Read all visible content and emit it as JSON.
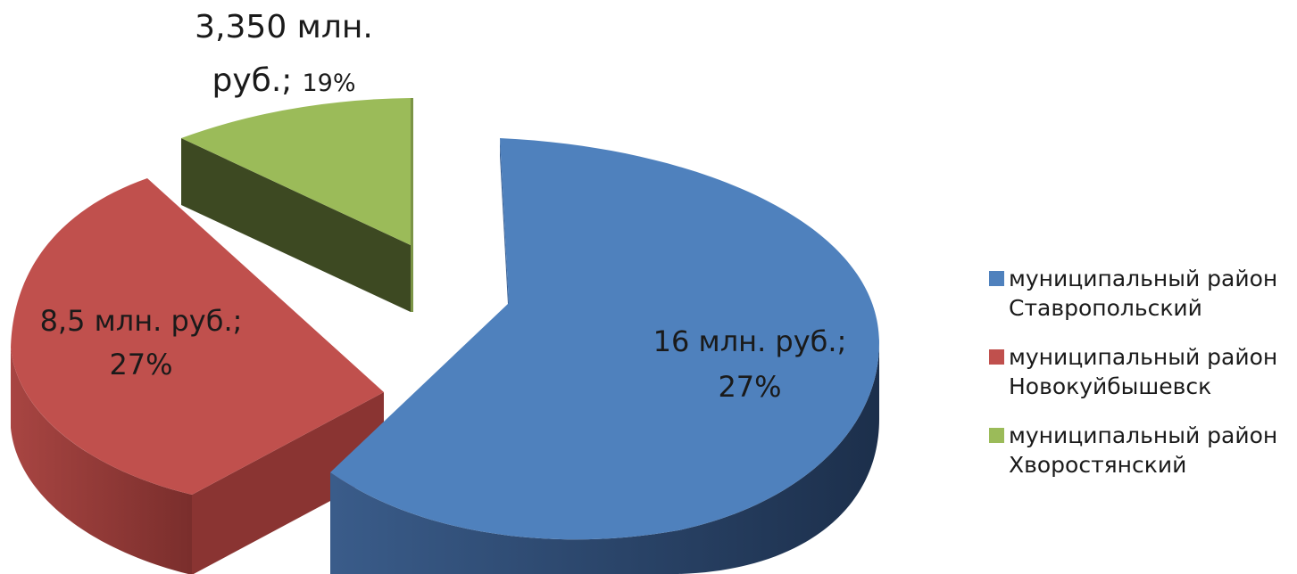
{
  "chart_data": {
    "type": "pie",
    "title": "",
    "slices": [
      {
        "name": "муниципальный район Ставропольский",
        "value": 16,
        "percent": 27,
        "label_value": "16 млн. руб.;",
        "label_percent": "27%",
        "color": "#4F81BD"
      },
      {
        "name": "муниципальный район Новокуйбышевск",
        "value": 8.5,
        "percent": 27,
        "label_value": "8,5 млн. руб.;",
        "label_percent": "27%",
        "color": "#C0504D"
      },
      {
        "name": "муниципальный район Хворостянский",
        "value": 3.35,
        "percent": 19,
        "label_value": "3,350 млн.",
        "label_value_2": "руб.;",
        "label_percent": "19%",
        "color": "#9BBB59"
      }
    ],
    "legend_position": "right",
    "three_d": true,
    "exploded": true
  },
  "legend": [
    {
      "line1": "муниципальный район",
      "line2": "Ставропольский",
      "color": "#4F81BD"
    },
    {
      "line1": "муниципальный район",
      "line2": "Новокуйбышевск",
      "color": "#C0504D"
    },
    {
      "line1": "муниципальный район",
      "line2": "Хворостянский",
      "color": "#9BBB59"
    }
  ]
}
